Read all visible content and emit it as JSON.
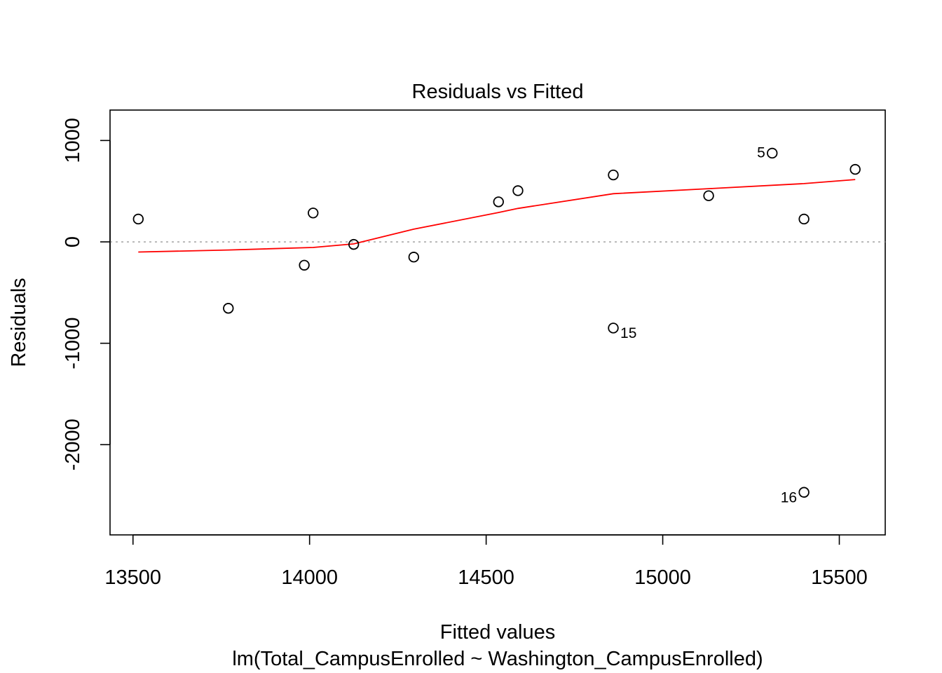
{
  "chart_data": {
    "type": "scatter",
    "title": "Residuals vs Fitted",
    "xlabel": "Fitted values",
    "subtitle": "lm(Total_CampusEnrolled ~ Washington_CampusEnrolled)",
    "ylabel": "Residuals",
    "xlim": [
      13435,
      15630
    ],
    "ylim": [
      -2890,
      1300
    ],
    "x_ticks": [
      13500,
      14000,
      14500,
      15000,
      15500
    ],
    "y_ticks": [
      -2000,
      -1000,
      0,
      1000
    ],
    "x_tick_labels": [
      "13500",
      "14000",
      "14500",
      "15000",
      "15500"
    ],
    "y_tick_labels": [
      "-2000",
      "-1000",
      "0",
      "1000"
    ],
    "grid": false,
    "reference_line": {
      "y": 0,
      "style": "dotted",
      "color": "#aaaaaa"
    },
    "points": [
      {
        "x": 13515,
        "y": 225,
        "label": ""
      },
      {
        "x": 13770,
        "y": -655,
        "label": ""
      },
      {
        "x": 13985,
        "y": -230,
        "label": ""
      },
      {
        "x": 14010,
        "y": 285,
        "label": ""
      },
      {
        "x": 14125,
        "y": -25,
        "label": ""
      },
      {
        "x": 14295,
        "y": -150,
        "label": ""
      },
      {
        "x": 14535,
        "y": 395,
        "label": ""
      },
      {
        "x": 14590,
        "y": 505,
        "label": ""
      },
      {
        "x": 14860,
        "y": 660,
        "label": ""
      },
      {
        "x": 14860,
        "y": -850,
        "label": "15"
      },
      {
        "x": 15130,
        "y": 455,
        "label": ""
      },
      {
        "x": 15310,
        "y": 875,
        "label": "5"
      },
      {
        "x": 15400,
        "y": 225,
        "label": ""
      },
      {
        "x": 15400,
        "y": -2470,
        "label": "16"
      },
      {
        "x": 15545,
        "y": 715,
        "label": ""
      }
    ],
    "smooth_line": {
      "color": "#ff0000",
      "x": [
        13515,
        13770,
        14010,
        14125,
        14295,
        14535,
        14590,
        14860,
        15130,
        15400,
        15545
      ],
      "y": [
        -100,
        -80,
        -55,
        -20,
        125,
        290,
        330,
        475,
        525,
        575,
        615
      ]
    },
    "colors": {
      "points": "#000000",
      "smooth": "#ff0000",
      "reference": "#aaaaaa"
    }
  }
}
